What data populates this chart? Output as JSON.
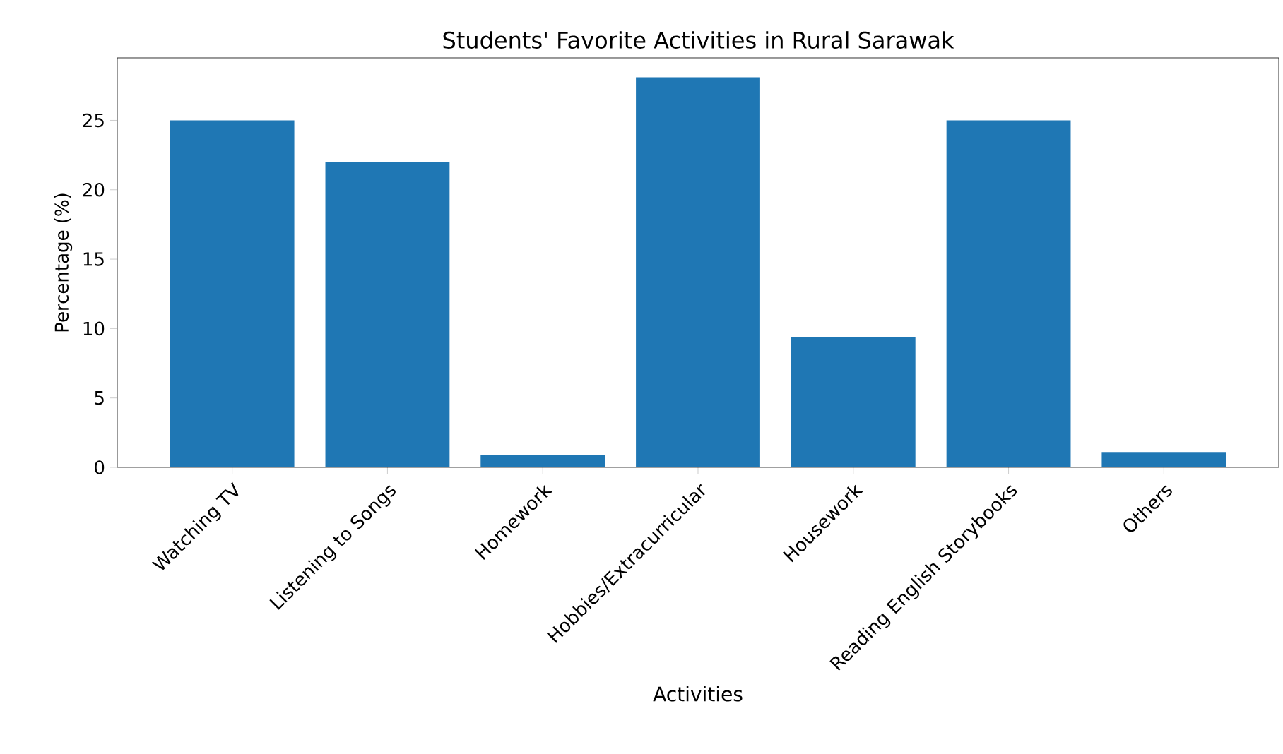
{
  "chart_data": {
    "type": "bar",
    "title": "Students' Favorite Activities in Rural Sarawak",
    "xlabel": "Activities",
    "ylabel": "Percentage (%)",
    "categories": [
      "Watching TV",
      "Listening to Songs",
      "Homework",
      "Hobbies/Extracurricular",
      "Housework",
      "Reading English Storybooks",
      "Others"
    ],
    "values": [
      25,
      22,
      0.9,
      28.1,
      9.4,
      25,
      1.1
    ],
    "color": "#1f77b4",
    "ylim": [
      0,
      29.5
    ],
    "yticks": [
      0,
      5,
      10,
      15,
      20,
      25
    ],
    "grid": false
  }
}
